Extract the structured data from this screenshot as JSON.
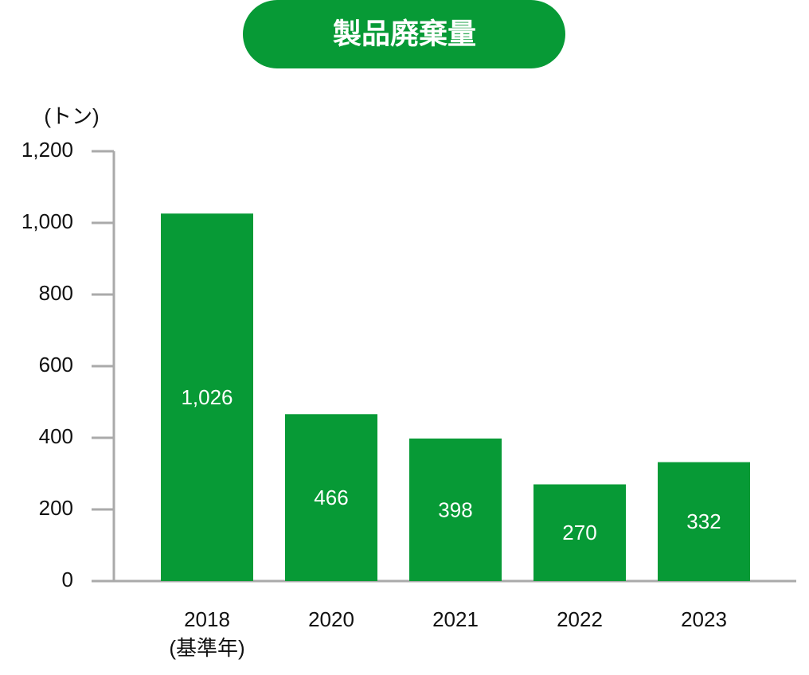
{
  "chart_data": {
    "type": "bar",
    "title": "製品廃棄量",
    "y_axis_label": "(トン)",
    "categories": [
      "2018\n(基準年)",
      "2020",
      "2021",
      "2022",
      "2023"
    ],
    "values": [
      1026,
      466,
      398,
      270,
      332
    ],
    "value_labels": [
      "1,026",
      "466",
      "398",
      "270",
      "332"
    ],
    "color": "#079a36",
    "ylim": [
      0,
      1200
    ],
    "yticks": [
      0,
      200,
      400,
      600,
      800,
      {
        "value": 1000,
        "label": "1,000"
      },
      {
        "value": 1200,
        "label": "1,200"
      }
    ],
    "grid": false
  }
}
